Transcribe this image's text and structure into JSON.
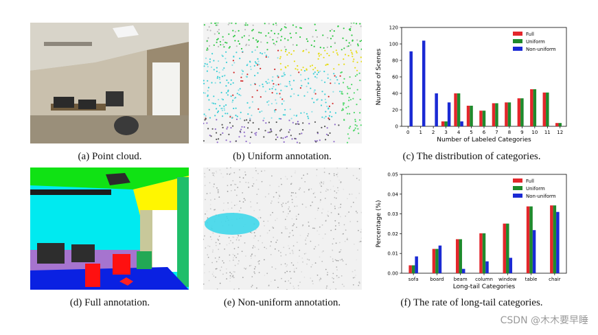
{
  "captions": {
    "a": "(a) Point cloud.",
    "b": "(b) Uniform annotation.",
    "c": "(c) The distribution of categories.",
    "d": "(d) Full annotation.",
    "e": "(e) Non-uniform annotation.",
    "f": "(f) The rate of long-tail categories."
  },
  "watermark": "CSDN @木木要早睡",
  "chart_data": [
    {
      "type": "bar",
      "categories": [
        "0",
        "1",
        "2",
        "3",
        "4",
        "5",
        "6",
        "7",
        "8",
        "9",
        "10",
        "11",
        "12"
      ],
      "xlabel": "Number of Labeled Categories",
      "ylabel": "Number of Scenes",
      "ylim": [
        0,
        120
      ],
      "yticks": [
        0,
        20,
        40,
        60,
        80,
        100,
        120
      ],
      "legend_position": "top-right",
      "series": [
        {
          "name": "Full",
          "color": "#e3262b",
          "values": [
            0,
            0,
            0,
            6,
            40,
            25,
            19,
            28,
            29,
            34,
            45,
            41,
            4
          ]
        },
        {
          "name": "Uniform",
          "color": "#1f8a2c",
          "values": [
            0,
            0,
            0,
            6,
            40,
            25,
            19,
            28,
            29,
            34,
            45,
            41,
            4
          ]
        },
        {
          "name": "Non-uniform",
          "color": "#1a2ad4",
          "values": [
            91,
            104,
            40,
            29,
            6,
            0,
            0,
            0,
            0,
            0,
            0,
            0,
            0
          ]
        }
      ]
    },
    {
      "type": "bar",
      "categories": [
        "sofa",
        "board",
        "beam",
        "column",
        "window",
        "table",
        "chair"
      ],
      "xlabel": "Long-tail Categories",
      "ylabel": "Percentage (%)",
      "ylim": [
        0,
        0.05
      ],
      "yticks": [
        "0.00",
        "0.01",
        "0.02",
        "0.03",
        "0.04",
        "0.05"
      ],
      "legend_position": "top-right",
      "series": [
        {
          "name": "Full",
          "color": "#e3262b",
          "values": [
            0.004,
            0.0123,
            0.0172,
            0.0202,
            0.0251,
            0.0338,
            0.0343
          ]
        },
        {
          "name": "Uniform",
          "color": "#1f8a2c",
          "values": [
            0.004,
            0.0123,
            0.0172,
            0.0202,
            0.0251,
            0.0338,
            0.0343
          ]
        },
        {
          "name": "Non-uniform",
          "color": "#1a2ad4",
          "values": [
            0.0085,
            0.014,
            0.0022,
            0.006,
            0.0078,
            0.0218,
            0.031
          ]
        }
      ]
    }
  ]
}
